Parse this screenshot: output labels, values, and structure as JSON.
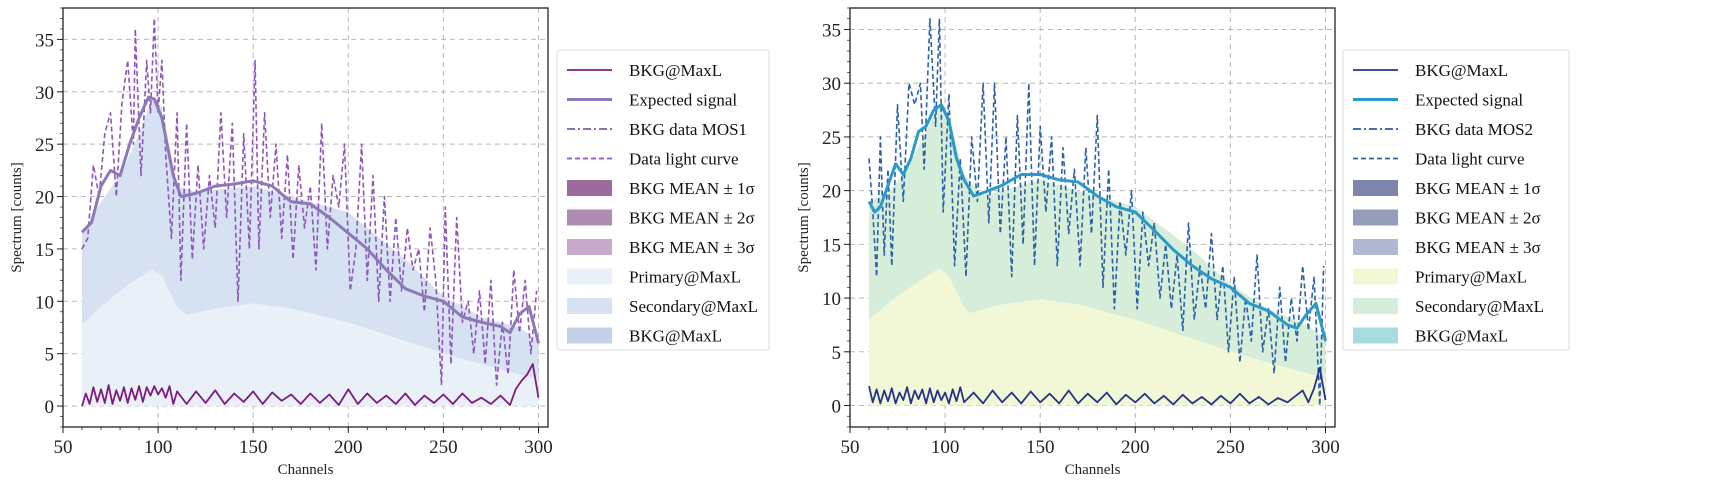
{
  "chart_data": [
    {
      "type": "line",
      "panel": "left",
      "title": "",
      "xlabel": "Channels",
      "ylabel": "Spectrum [counts]",
      "xlim": [
        50,
        305
      ],
      "ylim": [
        -2,
        38
      ],
      "xticks": [
        50,
        100,
        150,
        200,
        250,
        300
      ],
      "yticks": [
        0,
        5,
        10,
        15,
        20,
        25,
        30,
        35
      ],
      "grid": true,
      "legend_position": "outside-right",
      "colors": {
        "bkg_line": "#7b1d7e",
        "expected": "#8c79b8",
        "bkg_data": "#7e5ba8",
        "data_curve": "#8f55b8",
        "sigma1": "#9c6b9e",
        "sigma2": "#b08cb4",
        "sigma3": "#c7a9c9",
        "primary": "#eaf0f7",
        "secondary": "#d6e2f1",
        "bkg_fill": "#c3d1e8"
      },
      "legend": [
        {
          "label": "BKG@MaxL",
          "style": "solid",
          "color": "#7b1d7e"
        },
        {
          "label": "Expected signal",
          "style": "solid-thick",
          "color": "#8c79b8"
        },
        {
          "label": "BKG data MOS1",
          "style": "dashdot",
          "color": "#7e5ba8"
        },
        {
          "label": "Data light curve",
          "style": "dashed",
          "color": "#8f55b8"
        },
        {
          "label": "BKG MEAN ± 1σ",
          "style": "patch",
          "color": "#9c6b9e"
        },
        {
          "label": "BKG MEAN ± 2σ",
          "style": "patch",
          "color": "#b08cb4"
        },
        {
          "label": "BKG MEAN ± 3σ",
          "style": "patch",
          "color": "#c7a9c9"
        },
        {
          "label": "Primary@MaxL",
          "style": "patch",
          "color": "#eaf0f7"
        },
        {
          "label": "Secondary@MaxL",
          "style": "patch",
          "color": "#d6e2f1"
        },
        {
          "label": "BKG@MaxL",
          "style": "patch",
          "color": "#c3d1e8"
        }
      ],
      "series": [
        {
          "name": "Primary@MaxL",
          "x": [
            60,
            70,
            80,
            90,
            97,
            102,
            110,
            115,
            130,
            150,
            170,
            200,
            230,
            260,
            290,
            300
          ],
          "values": [
            7.8,
            9.5,
            11,
            12.3,
            13,
            12.4,
            9.5,
            8.7,
            9.3,
            9.8,
            9.3,
            8,
            6.2,
            4.5,
            3,
            2.6
          ]
        },
        {
          "name": "Secondary@MaxL",
          "x": [
            60,
            70,
            80,
            90,
            97,
            102,
            110,
            120,
            140,
            150,
            170,
            200,
            210,
            230,
            250,
            270,
            290,
            300
          ],
          "values": [
            16.6,
            19.5,
            22,
            26,
            29.5,
            28.5,
            21,
            20.5,
            20.8,
            21,
            20,
            18.5,
            17,
            14,
            10.5,
            8.5,
            7.5,
            6.2
          ]
        },
        {
          "name": "Expected signal",
          "x": [
            60,
            65,
            70,
            75,
            80,
            85,
            90,
            95,
            98,
            102,
            108,
            112,
            120,
            130,
            140,
            150,
            160,
            170,
            180,
            190,
            200,
            210,
            220,
            230,
            240,
            250,
            260,
            270,
            280,
            285,
            290,
            295,
            300
          ],
          "values": [
            16.6,
            17.5,
            21,
            22.5,
            22,
            25,
            27.5,
            29.5,
            29.3,
            27.5,
            22,
            20,
            20.3,
            21,
            21.2,
            21.5,
            21,
            19.5,
            19.3,
            18,
            16.5,
            15,
            13,
            11.2,
            10.5,
            10,
            8.5,
            8,
            7.6,
            7,
            8.8,
            9.5,
            6
          ]
        },
        {
          "name": "Data light curve",
          "x": [
            60,
            63,
            66,
            69,
            72,
            75,
            78,
            81,
            84,
            87,
            88,
            91,
            94,
            96,
            98,
            100,
            102,
            104,
            107,
            110,
            112,
            115,
            118,
            121,
            124,
            127,
            130,
            133,
            136,
            139,
            142,
            145,
            148,
            151,
            153,
            156,
            159,
            162,
            165,
            168,
            171,
            174,
            177,
            180,
            183,
            186,
            189,
            192,
            195,
            198,
            201,
            204,
            207,
            210,
            213,
            216,
            219,
            222,
            225,
            228,
            231,
            234,
            237,
            240,
            243,
            246,
            249,
            251,
            254,
            257,
            260,
            263,
            266,
            269,
            272,
            275,
            278,
            281,
            284,
            287,
            290,
            293,
            296,
            299
          ],
          "values": [
            15,
            16,
            23,
            20,
            26,
            28,
            20,
            29,
            33,
            25,
            36,
            22,
            33,
            28,
            37,
            28,
            33,
            24,
            16,
            28,
            12,
            27,
            14,
            23,
            15,
            22,
            17,
            28,
            18,
            27,
            10,
            26,
            15,
            33,
            15,
            28,
            18,
            25,
            16,
            24,
            14,
            23,
            17,
            21,
            13,
            27,
            15,
            22,
            19,
            25,
            11,
            15,
            25,
            12,
            22,
            10,
            20,
            10,
            18,
            11,
            17,
            13,
            15,
            9,
            17,
            12,
            2,
            19,
            4,
            18,
            8,
            10,
            5,
            11,
            4,
            12,
            2,
            8,
            3,
            13,
            7,
            12,
            5,
            11
          ]
        },
        {
          "name": "BKG@MaxL",
          "x": [
            60,
            62,
            64,
            66,
            68,
            70,
            72,
            74,
            76,
            78,
            80,
            82,
            84,
            86,
            88,
            90,
            92,
            94,
            96,
            98,
            100,
            102,
            104,
            106,
            108,
            110,
            115,
            120,
            125,
            130,
            135,
            140,
            145,
            150,
            155,
            160,
            165,
            170,
            175,
            180,
            185,
            190,
            195,
            200,
            205,
            210,
            215,
            220,
            225,
            230,
            235,
            240,
            245,
            250,
            255,
            260,
            265,
            270,
            275,
            280,
            285,
            288,
            291,
            294,
            297,
            300
          ],
          "values": [
            0,
            1.2,
            0.2,
            1.8,
            0.4,
            1.6,
            0.3,
            2,
            0.2,
            1.5,
            0.5,
            1.8,
            0.3,
            1.7,
            0.6,
            1.9,
            0.4,
            1.8,
            1.0,
            1.9,
            1.1,
            1.7,
            0.8,
            1.9,
            0.2,
            1.4,
            0.2,
            1.4,
            0.3,
            1.5,
            0.2,
            1.2,
            0.4,
            1.4,
            0.2,
            1.3,
            0.5,
            1.1,
            0.2,
            1.2,
            0.3,
            1.1,
            0.1,
            1.6,
            0.2,
            1.2,
            0.3,
            1.0,
            0.2,
            1.2,
            0.1,
            1.0,
            0.3,
            1.1,
            0.2,
            1.2,
            0.3,
            0.8,
            0.2,
            1.0,
            0.1,
            1.6,
            2.4,
            3.0,
            4.0,
            0.8
          ]
        }
      ]
    },
    {
      "type": "line",
      "panel": "right",
      "title": "",
      "xlabel": "Channels",
      "ylabel": "Spectrum [counts]",
      "xlim": [
        50,
        305
      ],
      "ylim": [
        -2,
        37
      ],
      "xticks": [
        50,
        100,
        150,
        200,
        250,
        300
      ],
      "yticks": [
        0,
        5,
        10,
        15,
        20,
        25,
        30,
        35
      ],
      "grid": true,
      "legend_position": "outside-right",
      "colors": {
        "bkg_line": "#25338a",
        "expected": "#2a9ac8",
        "bkg_data": "#2c5a9e",
        "data_curve": "#2c60a6",
        "sigma1": "#7c86ac",
        "sigma2": "#959dbd",
        "sigma3": "#b2b8d2",
        "primary": "#f2f8d6",
        "secondary": "#d6eed9",
        "bkg_fill": "#a8dbde"
      },
      "legend": [
        {
          "label": "BKG@MaxL",
          "style": "solid",
          "color": "#25338a"
        },
        {
          "label": "Expected signal",
          "style": "solid-thick",
          "color": "#2a9ac8"
        },
        {
          "label": "BKG data MOS2",
          "style": "dashdot",
          "color": "#2c5a9e"
        },
        {
          "label": "Data light curve",
          "style": "dashed",
          "color": "#2c60a6"
        },
        {
          "label": "BKG MEAN ± 1σ",
          "style": "patch",
          "color": "#7c86ac"
        },
        {
          "label": "BKG MEAN ± 2σ",
          "style": "patch",
          "color": "#959dbd"
        },
        {
          "label": "BKG MEAN ± 3σ",
          "style": "patch",
          "color": "#b2b8d2"
        },
        {
          "label": "Primary@MaxL",
          "style": "patch",
          "color": "#f2f8d6"
        },
        {
          "label": "Secondary@MaxL",
          "style": "patch",
          "color": "#d6eed9"
        },
        {
          "label": "BKG@MaxL",
          "style": "patch",
          "color": "#a8dbde"
        }
      ],
      "series": [
        {
          "name": "Primary@MaxL",
          "x": [
            60,
            70,
            80,
            90,
            97,
            102,
            110,
            113,
            130,
            150,
            170,
            200,
            230,
            260,
            290,
            300
          ],
          "values": [
            8,
            9.5,
            10.8,
            12,
            12.8,
            12,
            9.2,
            8.6,
            9.4,
            9.9,
            9.4,
            8,
            6.2,
            4.5,
            3,
            2.6
          ]
        },
        {
          "name": "Secondary@MaxL",
          "x": [
            60,
            70,
            80,
            90,
            97,
            102,
            110,
            120,
            140,
            150,
            170,
            200,
            210,
            230,
            250,
            270,
            290,
            300
          ],
          "values": [
            19,
            19.8,
            22,
            25.5,
            28,
            27,
            21.5,
            19.5,
            20.5,
            21,
            20,
            18.5,
            17.2,
            14.5,
            11.3,
            9,
            7.5,
            6.3
          ]
        },
        {
          "name": "Expected signal",
          "x": [
            60,
            63,
            66,
            70,
            74,
            78,
            82,
            86,
            90,
            94,
            98,
            102,
            106,
            110,
            115,
            120,
            130,
            140,
            150,
            160,
            170,
            180,
            190,
            200,
            210,
            220,
            230,
            240,
            250,
            260,
            270,
            280,
            285,
            290,
            295,
            300
          ],
          "values": [
            19,
            18,
            18.5,
            20.5,
            22.5,
            21.5,
            23,
            25.5,
            26,
            27.5,
            28,
            26.5,
            23,
            21,
            19.5,
            19.8,
            20.5,
            21.5,
            21.5,
            21,
            20.8,
            19.5,
            18.5,
            18,
            16.3,
            14.5,
            13,
            11.8,
            11,
            9.5,
            8.8,
            7.5,
            7.2,
            8.5,
            9.5,
            6
          ]
        },
        {
          "name": "Data light curve",
          "x": [
            60,
            62,
            64,
            66,
            68,
            70,
            72,
            75,
            78,
            81,
            84,
            87,
            89,
            92,
            95,
            97,
            99,
            102,
            105,
            108,
            111,
            114,
            117,
            120,
            123,
            126,
            129,
            132,
            135,
            138,
            141,
            144,
            147,
            150,
            153,
            156,
            159,
            162,
            165,
            168,
            171,
            174,
            177,
            180,
            183,
            186,
            189,
            192,
            195,
            198,
            201,
            204,
            207,
            210,
            213,
            216,
            219,
            222,
            225,
            228,
            231,
            234,
            237,
            240,
            243,
            246,
            249,
            252,
            255,
            258,
            261,
            264,
            267,
            270,
            273,
            276,
            279,
            282,
            285,
            288,
            291,
            294,
            297,
            299
          ],
          "values": [
            23,
            18,
            12,
            25,
            14,
            22,
            13,
            28,
            19,
            30,
            28,
            30,
            22,
            36,
            26,
            36,
            18,
            29,
            13,
            23,
            12,
            25,
            19,
            30,
            17,
            30,
            16,
            25,
            12,
            27,
            15,
            30,
            13,
            26,
            18,
            25,
            13,
            24,
            16,
            22,
            13,
            24,
            16,
            27,
            11,
            22,
            9,
            19,
            14,
            20,
            9,
            18,
            13,
            17,
            10,
            15,
            9,
            14,
            7,
            17,
            8,
            13,
            9,
            16,
            8,
            13,
            5,
            12,
            4,
            10,
            6,
            14,
            5,
            9,
            3,
            11,
            4,
            10,
            6,
            13,
            7,
            12,
            0,
            13
          ]
        },
        {
          "name": "BKG@MaxL",
          "x": [
            60,
            62,
            64,
            66,
            68,
            70,
            72,
            74,
            76,
            78,
            80,
            82,
            84,
            86,
            88,
            90,
            92,
            94,
            96,
            98,
            100,
            102,
            104,
            106,
            108,
            110,
            115,
            120,
            125,
            130,
            135,
            140,
            145,
            150,
            155,
            160,
            165,
            170,
            175,
            180,
            185,
            190,
            195,
            200,
            205,
            210,
            215,
            220,
            225,
            230,
            235,
            240,
            245,
            250,
            255,
            260,
            265,
            270,
            275,
            280,
            285,
            288,
            291,
            294,
            297,
            300
          ],
          "values": [
            1.8,
            0.3,
            1.5,
            0.2,
            1.4,
            0.4,
            1.6,
            0.2,
            1.2,
            0.5,
            1.7,
            0.2,
            1.4,
            0.6,
            1.5,
            0.2,
            1.6,
            0.3,
            1.4,
            0.5,
            1.2,
            0.2,
            1.5,
            0.4,
            1.7,
            0.3,
            1.2,
            0.2,
            1.4,
            0.3,
            1.2,
            0.2,
            1.3,
            0.3,
            1.1,
            0.2,
            1.4,
            0.2,
            1.1,
            0.3,
            1.2,
            0.1,
            1.0,
            0.3,
            1.1,
            0.2,
            0.9,
            0.1,
            1.0,
            0.2,
            0.8,
            0.1,
            0.9,
            0.2,
            1.1,
            0.2,
            0.8,
            0.1,
            0.7,
            0.3,
            1.0,
            1.4,
            0.3,
            1.6,
            3.5,
            0.5
          ]
        }
      ]
    }
  ]
}
